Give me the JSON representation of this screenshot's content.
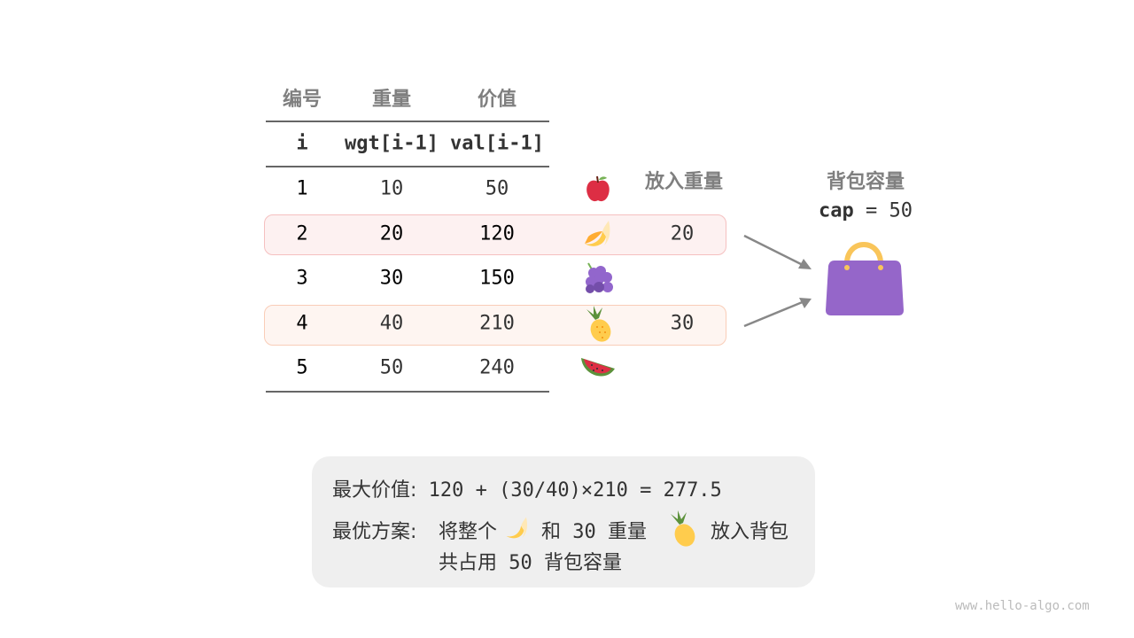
{
  "table": {
    "headers_cn": [
      "编号",
      "重量",
      "价值"
    ],
    "headers_code": [
      "i",
      "wgt[i-1]",
      "val[i-1]"
    ],
    "rows": [
      {
        "i": "1",
        "wgt": "10",
        "val": "50",
        "fruit": "apple-icon",
        "put": ""
      },
      {
        "i": "2",
        "wgt": "20",
        "val": "120",
        "fruit": "banana-icon",
        "put": "20"
      },
      {
        "i": "3",
        "wgt": "30",
        "val": "150",
        "fruit": "grapes-icon",
        "put": ""
      },
      {
        "i": "4",
        "wgt": "40",
        "val": "210",
        "fruit": "pineapple-icon",
        "put": "30"
      },
      {
        "i": "5",
        "wgt": "50",
        "val": "240",
        "fruit": "watermelon-icon",
        "put": ""
      }
    ],
    "put_header": "放入重量",
    "highlight_colors": {
      "row2": "#fdf1f1",
      "row4": "#fef5f1"
    }
  },
  "knapsack": {
    "title": "背包容量",
    "cap_label": "cap",
    "cap_rest": " = 50",
    "bag_color": "#9566c9",
    "handle_color": "#f9c55a"
  },
  "summary": {
    "line1_label": "最大价值:",
    "line1_value": "120 + (30/40)×210 = 277.5",
    "line2_label": "最优方案:",
    "line2_a": "将整个",
    "line2_b": "和 30 重量",
    "line2_c": "放入背包",
    "line3": "共占用 50 背包容量"
  },
  "watermark": "www.hello-algo.com"
}
